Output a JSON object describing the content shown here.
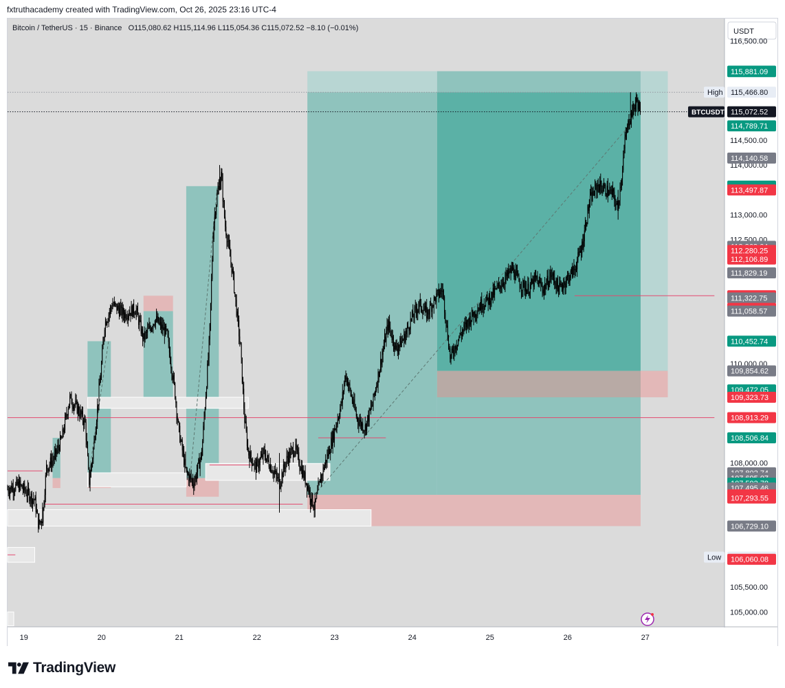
{
  "caption": "fxtruthacademy created with TradingView.com, Oct 26, 2025 23:16 UTC-4",
  "symbol": {
    "name": "Bitcoin / TetherUS · 15 · Binance",
    "open": "O115,080.62",
    "high": "H115,114.96",
    "low": "L115,054.36",
    "close": "C115,072.52",
    "change": "−8.10 (−0.01%)"
  },
  "currency": "USDT",
  "brand": "TradingView",
  "colors": {
    "background": "#dbdbdb",
    "tp_zone": "#8fc3bd",
    "tp_zone_dark": "#5bb1a6",
    "sl_zone": "#e3b8b8",
    "gray_box": "#d0d0d0",
    "candle": "#000000",
    "red_line": "#e34a6f",
    "green_label": "#089981",
    "red_label": "#f23645",
    "gray_label": "#787b86",
    "black_label": "#131722"
  },
  "chart_data": {
    "type": "candlestick",
    "title": "",
    "xlabel": "",
    "ylabel": "",
    "x_ticks": [
      "19",
      "20",
      "21",
      "22",
      "23",
      "24",
      "25",
      "26",
      "27"
    ],
    "y_ticks": [
      "116,500.00",
      "114,500.00",
      "114,000.00",
      "113,000.00",
      "112,500.00",
      "110,000.00",
      "108,000.00",
      "105,500.00",
      "105,000.00"
    ],
    "ylim": [
      104700,
      116950
    ],
    "grid": false,
    "price_labels": [
      {
        "text": "115,890.90",
        "value": 115890.9,
        "color": "#089981"
      },
      {
        "text": "115,881.09",
        "value": 115881.09,
        "color": "#089981"
      },
      {
        "text": "115,466.80",
        "value": 115466.8,
        "color": "#e8edf5",
        "tag": "High"
      },
      {
        "text": "115,072.52",
        "value": 115072.52,
        "color": "#131722",
        "tag": "BTCUSDT"
      },
      {
        "text": "114,789.71",
        "value": 114789.71,
        "color": "#089981"
      },
      {
        "text": "114,140.58",
        "value": 114140.58,
        "color": "#787b86"
      },
      {
        "text": "113,575.40",
        "value": 113575.4,
        "color": "#089981"
      },
      {
        "text": "113,542.53",
        "value": 113542.53,
        "color": "#089981"
      },
      {
        "text": "113,497.87",
        "value": 113497.87,
        "color": "#f23645"
      },
      {
        "text": "112,363.64",
        "value": 112363.64,
        "color": "#787b86"
      },
      {
        "text": "112,280.25",
        "value": 112280.25,
        "color": "#f23645"
      },
      {
        "text": "112,106.89",
        "value": 112106.89,
        "color": "#f23645"
      },
      {
        "text": "111,829.19",
        "value": 111829.19,
        "color": "#787b86"
      },
      {
        "text": "111,368.13",
        "value": 111368.13,
        "color": "#f23645"
      },
      {
        "text": "111,322.75",
        "value": 111322.75,
        "color": "#787b86"
      },
      {
        "text": "111,113.73",
        "value": 111113.73,
        "color": "#f23645"
      },
      {
        "text": "111,058.57",
        "value": 111058.57,
        "color": "#787b86"
      },
      {
        "text": "110,452.74",
        "value": 110452.74,
        "color": "#089981"
      },
      {
        "text": "109,854.62",
        "value": 109854.62,
        "color": "#787b86"
      },
      {
        "text": "109,472.05",
        "value": 109472.05,
        "color": "#089981"
      },
      {
        "text": "109,323.73",
        "value": 109323.73,
        "color": "#f23645"
      },
      {
        "text": "108,913.29",
        "value": 108913.29,
        "color": "#f23645"
      },
      {
        "text": "108,506.84",
        "value": 108506.84,
        "color": "#089981"
      },
      {
        "text": "107,802.74",
        "value": 107802.74,
        "color": "#787b86"
      },
      {
        "text": "107,695.07",
        "value": 107695.07,
        "color": "#787b86"
      },
      {
        "text": "107,593.78",
        "value": 107593.78,
        "color": "#089981"
      },
      {
        "text": "107,495.46",
        "value": 107495.46,
        "color": "#787b86"
      },
      {
        "text": "107,358.68",
        "value": 107358.68,
        "color": "#f23645"
      },
      {
        "text": "107,320.85",
        "value": 107320.85,
        "color": "#f23645"
      },
      {
        "text": "107,293.55",
        "value": 107293.55,
        "color": "#f23645"
      },
      {
        "text": "106,729.10",
        "value": 106729.1,
        "color": "#787b86"
      },
      {
        "text": "106,103.36",
        "value": 106103.36,
        "color": "#e8edf5",
        "tag": "Low"
      },
      {
        "text": "106,060.08",
        "value": 106060.08,
        "color": "#f23645"
      }
    ],
    "price_path": [
      [
        18.8,
        107470
      ],
      [
        18.95,
        107560
      ],
      [
        19.05,
        107400
      ],
      [
        19.15,
        107250
      ],
      [
        19.2,
        106750
      ],
      [
        19.25,
        106900
      ],
      [
        19.3,
        107900
      ],
      [
        19.4,
        108100
      ],
      [
        19.5,
        108500
      ],
      [
        19.6,
        109300
      ],
      [
        19.7,
        109100
      ],
      [
        19.8,
        108800
      ],
      [
        19.85,
        107600
      ],
      [
        19.9,
        108200
      ],
      [
        20.0,
        109800
      ],
      [
        20.05,
        110800
      ],
      [
        20.15,
        111200
      ],
      [
        20.3,
        111000
      ],
      [
        20.45,
        111100
      ],
      [
        20.55,
        110500
      ],
      [
        20.7,
        110900
      ],
      [
        20.85,
        110600
      ],
      [
        20.95,
        109500
      ],
      [
        21.0,
        108700
      ],
      [
        21.1,
        107800
      ],
      [
        21.2,
        107600
      ],
      [
        21.3,
        108200
      ],
      [
        21.4,
        110500
      ],
      [
        21.45,
        112800
      ],
      [
        21.5,
        113400
      ],
      [
        21.55,
        113800
      ],
      [
        21.6,
        112800
      ],
      [
        21.7,
        111800
      ],
      [
        21.8,
        110300
      ],
      [
        21.85,
        108900
      ],
      [
        21.9,
        108200
      ],
      [
        22.0,
        107900
      ],
      [
        22.1,
        108200
      ],
      [
        22.2,
        107900
      ],
      [
        22.3,
        107600
      ],
      [
        22.4,
        108100
      ],
      [
        22.5,
        108300
      ],
      [
        22.6,
        107800
      ],
      [
        22.65,
        107600
      ],
      [
        22.75,
        107100
      ],
      [
        22.85,
        107800
      ],
      [
        22.95,
        108300
      ],
      [
        23.1,
        109200
      ],
      [
        23.15,
        109800
      ],
      [
        23.3,
        108900
      ],
      [
        23.4,
        108700
      ],
      [
        23.5,
        109200
      ],
      [
        23.6,
        110000
      ],
      [
        23.7,
        110800
      ],
      [
        23.8,
        110300
      ],
      [
        23.9,
        110500
      ],
      [
        24.0,
        110900
      ],
      [
        24.1,
        111200
      ],
      [
        24.2,
        111000
      ],
      [
        24.3,
        111300
      ],
      [
        24.4,
        111500
      ],
      [
        24.45,
        110800
      ],
      [
        24.5,
        110100
      ],
      [
        24.6,
        110500
      ],
      [
        24.75,
        110900
      ],
      [
        24.9,
        111200
      ],
      [
        25.0,
        111300
      ],
      [
        25.1,
        111500
      ],
      [
        25.2,
        111700
      ],
      [
        25.3,
        111900
      ],
      [
        25.4,
        111600
      ],
      [
        25.5,
        111500
      ],
      [
        25.6,
        111700
      ],
      [
        25.7,
        111500
      ],
      [
        25.8,
        111800
      ],
      [
        25.9,
        111500
      ],
      [
        26.0,
        111700
      ],
      [
        26.1,
        111900
      ],
      [
        26.2,
        112400
      ],
      [
        26.25,
        112900
      ],
      [
        26.3,
        113300
      ],
      [
        26.4,
        113600
      ],
      [
        26.5,
        113500
      ],
      [
        26.6,
        113400
      ],
      [
        26.65,
        113100
      ],
      [
        26.7,
        113700
      ],
      [
        26.75,
        114500
      ],
      [
        26.8,
        114900
      ],
      [
        26.85,
        115100
      ],
      [
        26.9,
        115300
      ],
      [
        26.95,
        115072
      ]
    ],
    "zones": [
      {
        "kind": "tp",
        "x0": 22.66,
        "x1": 24.33,
        "y0": 115890,
        "y1": 115466,
        "color": "#b8d6d3"
      },
      {
        "kind": "tp",
        "x0": 24.33,
        "x1": 26.95,
        "y0": 115890,
        "y1": 115466,
        "color": "#8fc3bd"
      },
      {
        "kind": "tp",
        "x0": 26.95,
        "x1": 27.3,
        "y0": 115890,
        "y1": 109854,
        "color": "#b8d6d3"
      },
      {
        "kind": "tp",
        "x0": 22.66,
        "x1": 24.33,
        "y0": 115466,
        "y1": 107358,
        "color": "#8fc3bd"
      },
      {
        "kind": "tp",
        "x0": 24.33,
        "x1": 26.95,
        "y0": 115466,
        "y1": 109854,
        "color": "#5bb1a6"
      },
      {
        "kind": "tp",
        "x0": 24.33,
        "x1": 26.95,
        "y0": 109854,
        "y1": 107358,
        "color": "#8fc3bd"
      },
      {
        "kind": "sl",
        "x0": 24.33,
        "x1": 27.3,
        "y0": 109854,
        "y1": 109323,
        "color": "#b8aaa5"
      },
      {
        "kind": "sl",
        "x0": 26.95,
        "x1": 27.3,
        "y0": 109854,
        "y1": 109323,
        "color": "#e3b8b8"
      },
      {
        "kind": "sl",
        "x0": 22.66,
        "x1": 26.95,
        "y0": 107358,
        "y1": 106729,
        "color": "#e3b8b8"
      },
      {
        "kind": "tp",
        "x0": 19.83,
        "x1": 20.13,
        "y0": 110452,
        "y1": 107802,
        "color": "#8fc3bd"
      },
      {
        "kind": "sl",
        "x0": 19.83,
        "x1": 20.13,
        "y0": 107802,
        "y1": 107495,
        "color": "#e3b8b8"
      },
      {
        "kind": "tp",
        "x0": 19.38,
        "x1": 19.48,
        "y0": 108506,
        "y1": 107695,
        "color": "#8fc3bd"
      },
      {
        "kind": "sl",
        "x0": 19.38,
        "x1": 19.48,
        "y0": 107695,
        "y1": 107495,
        "color": "#e3b8b8"
      },
      {
        "kind": "sl",
        "x0": 20.55,
        "x1": 20.93,
        "y0": 111368,
        "y1": 111058,
        "color": "#e3b8b8"
      },
      {
        "kind": "tp",
        "x0": 20.55,
        "x1": 20.93,
        "y0": 111058,
        "y1": 109323,
        "color": "#8fc3bd"
      },
      {
        "kind": "tp",
        "x0": 21.1,
        "x1": 21.52,
        "y0": 113575,
        "y1": 107695,
        "color": "#8fc3bd"
      },
      {
        "kind": "sl",
        "x0": 21.1,
        "x1": 21.52,
        "y0": 107695,
        "y1": 107320,
        "color": "#e3b8b8"
      },
      {
        "kind": "gray",
        "x0": 19.83,
        "x1": 21.9,
        "y0": 109323,
        "y1": 109100,
        "color": "#e8e8e8"
      },
      {
        "kind": "gray",
        "x0": 19.83,
        "x1": 21.1,
        "y0": 107802,
        "y1": 107520,
        "color": "#e8e8e8"
      },
      {
        "kind": "gray",
        "x0": 21.35,
        "x1": 22.95,
        "y0": 107990,
        "y1": 107650,
        "color": "#e8e8e8"
      },
      {
        "kind": "gray",
        "x0": 18.8,
        "x1": 23.48,
        "y0": 107060,
        "y1": 106729,
        "color": "#e8e8e8"
      },
      {
        "kind": "gray",
        "x0": 18.8,
        "x1": 19.15,
        "y0": 106300,
        "y1": 106000,
        "color": "#e8e8e8"
      },
      {
        "kind": "gray",
        "x0": 18.8,
        "x1": 18.88,
        "y0": 105000,
        "y1": 104720,
        "color": "#e8e8e8"
      }
    ],
    "lines": [
      {
        "kind": "dotted",
        "x0": 18.8,
        "x1": 27.9,
        "y": 115466,
        "color": "#9598a1"
      },
      {
        "kind": "dotted",
        "x0": 18.8,
        "x1": 27.9,
        "y": 115072,
        "color": "#131722"
      },
      {
        "kind": "solid",
        "x0": 18.8,
        "x1": 27.9,
        "y": 108913,
        "color": "#e34a6f"
      },
      {
        "kind": "solid",
        "x0": 26.1,
        "x1": 27.9,
        "y": 111368,
        "color": "#e34a6f"
      },
      {
        "kind": "solid",
        "x0": 22.8,
        "x1": 23.67,
        "y": 108506,
        "color": "#e34a6f"
      },
      {
        "kind": "solid",
        "x0": 19.27,
        "x1": 22.6,
        "y": 107170,
        "color": "#e34a6f"
      },
      {
        "kind": "solid",
        "x0": 18.8,
        "x1": 19.25,
        "y": 107840,
        "color": "#e34a6f"
      },
      {
        "kind": "solid",
        "x0": 21.4,
        "x1": 21.95,
        "y": 107960,
        "color": "#e34a6f"
      },
      {
        "kind": "solid",
        "x0": 18.8,
        "x1": 18.9,
        "y": 106150,
        "color": "#e34a6f"
      }
    ],
    "dashed_links": [
      {
        "x0": 22.75,
        "y0": 107358,
        "x1": 26.8,
        "y1": 114789
      },
      {
        "x0": 19.85,
        "y0": 107802,
        "x1": 20.1,
        "y1": 110452
      },
      {
        "x0": 21.15,
        "y0": 107695,
        "x1": 21.5,
        "y1": 113575
      }
    ]
  }
}
